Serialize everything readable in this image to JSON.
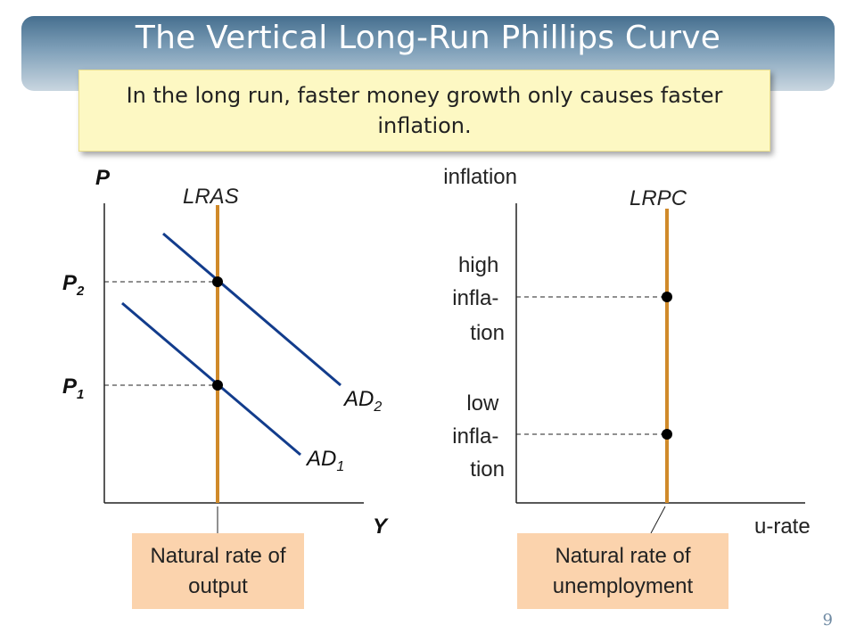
{
  "slide": {
    "title": "The Vertical Long-Run Phillips Curve",
    "subtitle": "In the long run, faster money growth only causes faster inflation.",
    "page_number": "9"
  },
  "left_graph": {
    "y_axis_label": "P",
    "x_axis_label": "Y",
    "vertical_line_label": "LRAS",
    "price_levels": [
      {
        "base": "P",
        "sub": "2"
      },
      {
        "base": "P",
        "sub": "1"
      }
    ],
    "curves": [
      {
        "base": "AD",
        "sub": "2"
      },
      {
        "base": "AD",
        "sub": "1"
      }
    ],
    "callout": "Natural rate of output"
  },
  "right_graph": {
    "y_axis_label": "inflation",
    "x_axis_label": "u-rate",
    "vertical_line_label": "LRPC",
    "levels": [
      {
        "line1": "high",
        "line2": "infla-",
        "line3": "tion"
      },
      {
        "line1": "low",
        "line2": "infla-",
        "line3": "tion"
      }
    ],
    "callout": "Natural rate of unemployment"
  },
  "colors": {
    "vertical_line": "#d08a2a",
    "curves": "#123c8c",
    "axes": "#222222",
    "callout_fill": "#fbd3ad",
    "subtitle_fill": "#fdf8c3"
  }
}
